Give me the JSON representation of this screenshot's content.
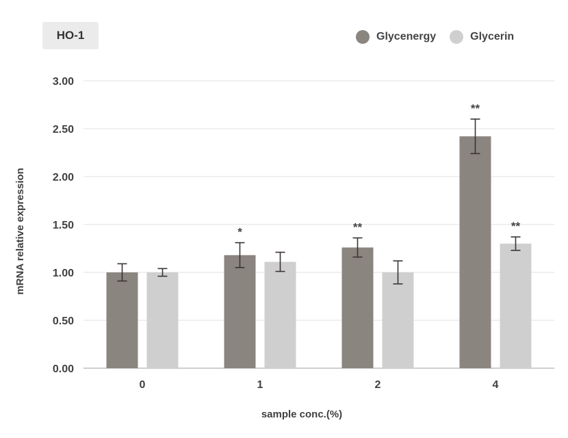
{
  "chart_data": {
    "type": "bar",
    "title": "HO-1",
    "xlabel": "sample conc.(%)",
    "ylabel": "mRNA relative expression",
    "categories": [
      "0",
      "1",
      "2",
      "4"
    ],
    "ylim": [
      0,
      3
    ],
    "yticks": [
      "0.00",
      "0.50",
      "1.00",
      "1.50",
      "2.00",
      "2.50",
      "3.00"
    ],
    "grid": true,
    "legend_position": "top-right",
    "series": [
      {
        "name": "Glycenergy",
        "color": "#8b8580",
        "values": [
          1.0,
          1.18,
          1.26,
          2.42
        ],
        "errors": [
          0.09,
          0.13,
          0.1,
          0.18
        ],
        "significance": [
          "",
          "*",
          "**",
          "**"
        ]
      },
      {
        "name": "Glycerin",
        "color": "#cfcfcf",
        "values": [
          1.0,
          1.11,
          1.0,
          1.3
        ],
        "errors": [
          0.04,
          0.1,
          0.12,
          0.07
        ],
        "significance": [
          "",
          "",
          "",
          "**"
        ]
      }
    ]
  }
}
